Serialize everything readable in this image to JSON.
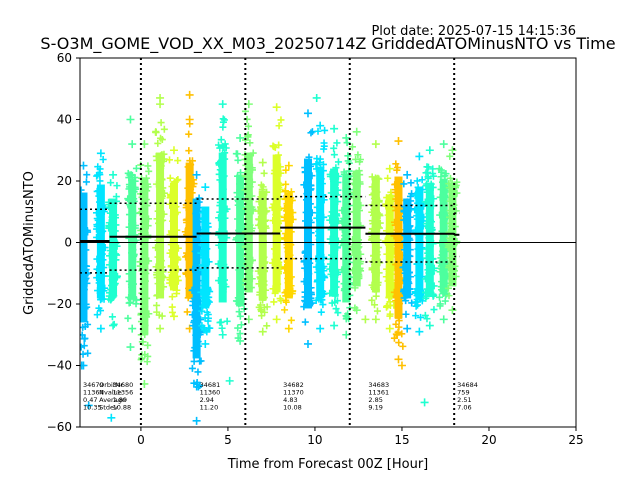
{
  "header": {
    "plot_date": "Plot date: 2025-07-15 14:15:36",
    "title": "S-O3M_GOME_VOD_XX_M03_20250714Z GriddedATOMinusNTO vs Time"
  },
  "chart_data": {
    "type": "scatter",
    "title": "S-O3M_GOME_VOD_XX_M03_20250714Z GriddedATOMinusNTO vs Time",
    "xlabel": "Time from Forecast 00Z [Hour]",
    "ylabel": "GriddedATOMinusNTO",
    "xlim": [
      -3.5,
      25
    ],
    "ylim": [
      -60,
      60
    ],
    "xticks": [
      0,
      5,
      10,
      15,
      20,
      25
    ],
    "yticks": [
      -60,
      -40,
      -20,
      0,
      20,
      40,
      60
    ],
    "marker": "+",
    "grid": false,
    "vertical_dotted_lines": [
      0,
      6,
      12,
      18
    ],
    "zero_line": 0,
    "colors": [
      "#00bfff",
      "#00e5ff",
      "#1effd0",
      "#4dff9e",
      "#80ff7a",
      "#b3ff4d",
      "#dcff2a",
      "#ffd700",
      "#ffc000"
    ],
    "orbit_label_header": [
      "OrbitNr",
      "Nvalue",
      "Average",
      "Stdev"
    ],
    "series": [
      {
        "columns": [
          {
            "x": -3.3,
            "min": -40,
            "max": 25,
            "color": "#00bfff"
          },
          {
            "x": -2.3,
            "min": -28,
            "max": 29,
            "color": "#00e5ff"
          },
          {
            "x": -1.6,
            "min": -27,
            "max": 22,
            "color": "#1effd0"
          }
        ]
      },
      {
        "columns": [
          {
            "x": -0.5,
            "min": -28,
            "max": 32,
            "color": "#4dff9e"
          },
          {
            "x": 0.2,
            "min": -46,
            "max": 32,
            "color": "#80ff7a"
          },
          {
            "x": 1.1,
            "min": -28,
            "max": 45,
            "color": "#b3ff4d"
          },
          {
            "x": 1.9,
            "min": -24,
            "max": 30,
            "color": "#dcff2a"
          },
          {
            "x": 2.8,
            "min": -28,
            "max": 40,
            "color": "#ffc000"
          },
          {
            "x": 3.2,
            "min": -58,
            "max": 22,
            "color": "#00bfff"
          },
          {
            "x": 3.7,
            "min": -33,
            "max": 18,
            "color": "#00e5ff"
          }
        ]
      },
      {
        "orbit": "34681",
        "nvalue": "11360",
        "average": "2.94",
        "stdev": "11.20",
        "label_x": 3.2,
        "mean": 2.94,
        "stdev_value": 11.2,
        "x_start": 3.2,
        "x_end": 8.0,
        "columns": [
          {
            "x": 4.7,
            "min": -30,
            "max": 45,
            "color": "#1effd0"
          },
          {
            "x": 5.7,
            "min": -32,
            "max": 34,
            "color": "#4dff9e"
          },
          {
            "x": 6.2,
            "min": -25,
            "max": 45,
            "color": "#80ff7a"
          },
          {
            "x": 7.0,
            "min": -29,
            "max": 26,
            "color": "#b3ff4d"
          },
          {
            "x": 7.8,
            "min": -25,
            "max": 44,
            "color": "#dcff2a"
          },
          {
            "x": 8.5,
            "min": -28,
            "max": 25,
            "color": "#ffd700"
          }
        ]
      },
      {
        "orbit": "34682",
        "nvalue": "11370",
        "average": "4.83",
        "stdev": "10.08",
        "label_x": 8.0,
        "mean": 4.83,
        "stdev_value": 10.08,
        "x_start": 8.0,
        "x_end": 12.9,
        "columns": [
          {
            "x": 9.6,
            "min": -33,
            "max": 42,
            "color": "#00bfff"
          },
          {
            "x": 10.3,
            "min": -28,
            "max": 38,
            "color": "#00e5ff"
          },
          {
            "x": 11.1,
            "min": -27,
            "max": 37,
            "color": "#1effd0"
          },
          {
            "x": 11.8,
            "min": -30,
            "max": 34,
            "color": "#4dff9e"
          },
          {
            "x": 12.4,
            "min": -22,
            "max": 36,
            "color": "#80ff7a"
          }
        ]
      },
      {
        "orbit": "34683",
        "nvalue": "11361",
        "average": "2.85",
        "stdev": "9.19",
        "label_x": 12.9,
        "mean": 2.85,
        "stdev_value": 9.19,
        "x_start": 12.9,
        "x_end": 18.0,
        "columns": [
          {
            "x": 13.5,
            "min": -25,
            "max": 32,
            "color": "#b3ff4d"
          },
          {
            "x": 14.3,
            "min": -28,
            "max": 24,
            "color": "#dcff2a"
          },
          {
            "x": 14.8,
            "min": -38,
            "max": 33,
            "color": "#ffc000"
          },
          {
            "x": 15.3,
            "min": -28,
            "max": 22,
            "color": "#00bfff"
          },
          {
            "x": 16.0,
            "min": -29,
            "max": 28,
            "color": "#00e5ff"
          },
          {
            "x": 16.6,
            "min": -27,
            "max": 30,
            "color": "#1effd0"
          },
          {
            "x": 17.4,
            "min": -25,
            "max": 32,
            "color": "#4dff9e"
          },
          {
            "x": 17.9,
            "min": -22,
            "max": 30,
            "color": "#80ff7a"
          }
        ]
      },
      {
        "orbit": "34684",
        "nvalue": "759",
        "average": "2.51",
        "stdev": "7.06",
        "label_x": 18.0,
        "mean": 2.51,
        "stdev_value": 7.06,
        "x_start": 18.0,
        "x_end": 18.3,
        "columns": []
      }
    ],
    "orbit_labels_left": [
      {
        "orbit": "34679",
        "nvalue": "11364",
        "average": "0.47",
        "stdev": "10.35",
        "label_x": -3.5,
        "mean": 0.47,
        "stdev_value": 10.35,
        "x_start": -3.5,
        "x_end": -1.8
      },
      {
        "orbit": "34680",
        "nvalue": "11356",
        "average": "1.89",
        "stdev": "10.88",
        "label_x": -1.8,
        "mean": 1.89,
        "stdev_value": 10.88,
        "x_start": -1.8,
        "x_end": 3.2
      }
    ]
  }
}
